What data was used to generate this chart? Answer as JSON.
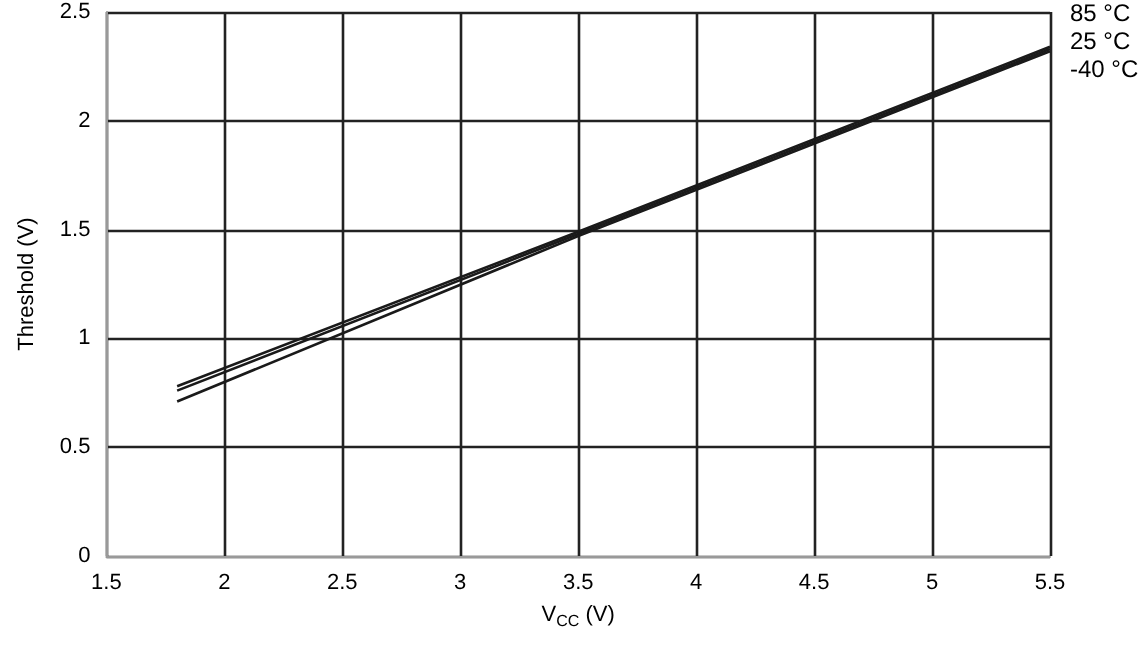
{
  "chart_data": {
    "type": "line",
    "xlabel": "V$_{CC}$ (V)",
    "ylabel": "Threshold (V)",
    "x": [
      1.8,
      3.5,
      5.5
    ],
    "series": [
      {
        "name": "85 °C",
        "color": "#1a1a1a",
        "values": [
          0.78,
          1.49,
          2.34
        ]
      },
      {
        "name": "25 °C",
        "color": "#1a1a1a",
        "values": [
          0.76,
          1.48,
          2.33
        ]
      },
      {
        "name": "-40 °C",
        "color": "#1a1a1a",
        "values": [
          0.71,
          1.47,
          2.32
        ]
      }
    ],
    "xlim": [
      1.5,
      5.5
    ],
    "xticks": [
      1.5,
      2,
      2.5,
      3,
      3.5,
      4,
      4.5,
      5,
      5.5
    ],
    "ylim": [
      0,
      2.5
    ],
    "yticks": [
      0,
      0.5,
      1,
      1.5,
      2,
      2.5
    ],
    "grid": true,
    "legend": false,
    "marker": "none",
    "line_style": "solid"
  }
}
